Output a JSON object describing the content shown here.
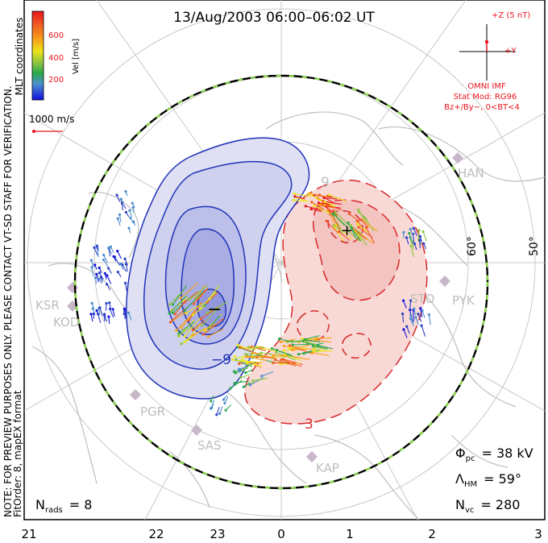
{
  "title": "13/Aug/2003 06:00–06:02 UT",
  "side_note": "NOTE: FOR PREVIEW PURPOSES ONLY. PLEASE CONTACT VT-SD STAFF FOR VERIFICATION.",
  "fit_order": "FitOrder: 8, mapEX format",
  "coord_label": "MLT coordinates",
  "colorbar": {
    "label": "Vel [m/s]",
    "ticks": [
      "600",
      "400",
      "200"
    ],
    "colors": [
      "#e8141c",
      "#f15a22",
      "#f7a21b",
      "#ede31b",
      "#8dc63f",
      "#29a84a",
      "#4d8fcf",
      "#2b3fc6",
      "#1010e0"
    ]
  },
  "scale_vector": {
    "label": "1000 m/s",
    "color": "#e8141c"
  },
  "imf": {
    "z_label": "+Z (5 nT)",
    "y_label": "+Y",
    "source": "OMNI IMF",
    "model_line1": "Stat Mod: RG96",
    "model_line2": "Bz+/By−, 0<BT<4",
    "color": "#e8141c"
  },
  "lat_labels": [
    "60°",
    "50°"
  ],
  "mlt_labels": [
    "21",
    "22",
    "23",
    "0",
    "1",
    "2",
    "3"
  ],
  "radars": [
    "HAN",
    "PYK",
    "KSR",
    "KOD",
    "PGR",
    "SAS",
    "KAP",
    "STO"
  ],
  "potential_labels": {
    "min": "−",
    "max": "+",
    "neg_contour": "−9",
    "pos_contour": "9",
    "pos_contour_low": "3"
  },
  "stats": {
    "phi_pc": {
      "symbol": "Φ",
      "sub": "pc",
      "value": "= 38 kV"
    },
    "lambda_hm": {
      "symbol": "Λ",
      "sub": "HM",
      "value": "= 59°"
    },
    "n_vc": {
      "symbol": "N",
      "sub": "vc",
      "value": "= 280"
    },
    "n_rads": {
      "symbol": "N",
      "sub": "rads",
      "value": "= 8"
    }
  },
  "colors": {
    "negative_cell": "#2033b8",
    "positive_cell": "#d8282a",
    "hmb": "#2e9e2e"
  }
}
